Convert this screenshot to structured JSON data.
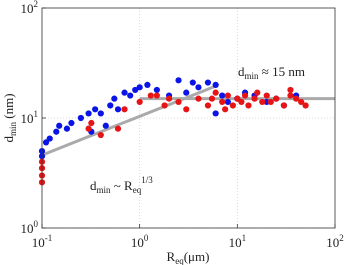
{
  "chart_data": {
    "type": "scatter",
    "xlabel": {
      "main": "R",
      "sub": "eq",
      "rest": "(μm)"
    },
    "ylabel": {
      "main": "d",
      "sub": "min",
      "rest": " (nm)"
    },
    "log_x": true,
    "log_y": true,
    "grid": true,
    "xlim": [
      0.1,
      100
    ],
    "ylim": [
      1,
      100
    ],
    "xticks": [
      {
        "value": 0.1,
        "label": "10",
        "exponent": "-1"
      },
      {
        "value": 1,
        "label": "10",
        "exponent": "0"
      },
      {
        "value": 10,
        "label": "10",
        "exponent": "1"
      },
      {
        "value": 100,
        "label": "10",
        "exponent": "2"
      }
    ],
    "yticks": [
      {
        "value": 1,
        "label": "10",
        "exponent": "0"
      },
      {
        "value": 10,
        "label": "10",
        "exponent": "1"
      },
      {
        "value": 100,
        "label": "10",
        "exponent": "2"
      }
    ],
    "series": [
      {
        "color": "#0a14e6",
        "x": [
          0.1,
          0.11,
          0.12,
          0.14,
          0.15,
          0.18,
          0.2,
          0.25,
          0.3,
          0.35,
          0.4,
          0.5,
          0.6,
          0.55,
          0.8,
          0.9,
          0.45,
          0.32,
          0.7,
          1.2,
          1.5,
          2,
          2.5,
          3,
          3.5,
          4,
          5,
          6,
          7,
          8,
          10,
          12,
          15,
          20,
          25,
          30,
          40,
          0.1,
          1,
          6
        ],
        "values": [
          5.0,
          6.0,
          6.5,
          7.5,
          8.5,
          8.0,
          9.0,
          10,
          11,
          12,
          11,
          13,
          12,
          15,
          16,
          18,
          8.5,
          7.5,
          17,
          20,
          18,
          16,
          22,
          17,
          21,
          19,
          21,
          20,
          16,
          14,
          15,
          17,
          16,
          14,
          15,
          13,
          16,
          4.5,
          19,
          11
        ]
      },
      {
        "color": "#e61414",
        "x": [
          0.1,
          0.1,
          0.1,
          0.1,
          0.3,
          0.32,
          0.4,
          0.6,
          0.7,
          1,
          1.3,
          1.8,
          2.5,
          3,
          4,
          5,
          5.5,
          7,
          8,
          9,
          10,
          11,
          12,
          13,
          15,
          16,
          18,
          20,
          22,
          25,
          30,
          35,
          40,
          45,
          1.5,
          2,
          6,
          7.5,
          50,
          35
        ],
        "values": [
          2.6,
          3.0,
          3.5,
          4.0,
          8.0,
          9.0,
          7.0,
          8,
          12,
          14,
          16,
          13,
          14,
          12,
          15,
          13,
          15,
          14,
          16,
          13,
          15,
          14,
          16,
          13,
          15,
          17,
          14,
          16,
          14,
          15,
          13,
          16,
          15,
          14,
          16,
          15,
          17,
          12,
          13,
          18
        ]
      }
    ],
    "lines": [
      {
        "color": "#aaaaaa",
        "x": [
          0.1,
          6
        ],
        "values": [
          4.6,
          19.5
        ]
      },
      {
        "color": "#aaaaaa",
        "x": [
          1,
          100
        ],
        "values": [
          15,
          15
        ]
      }
    ],
    "annotations": [
      {
        "main": "d",
        "sub": "min",
        "rest": " ≈ 15 nm"
      },
      {
        "main": "d",
        "sub": "min",
        "rest": " ~ R",
        "sub2": "eq",
        "sup": "1/3"
      }
    ]
  }
}
